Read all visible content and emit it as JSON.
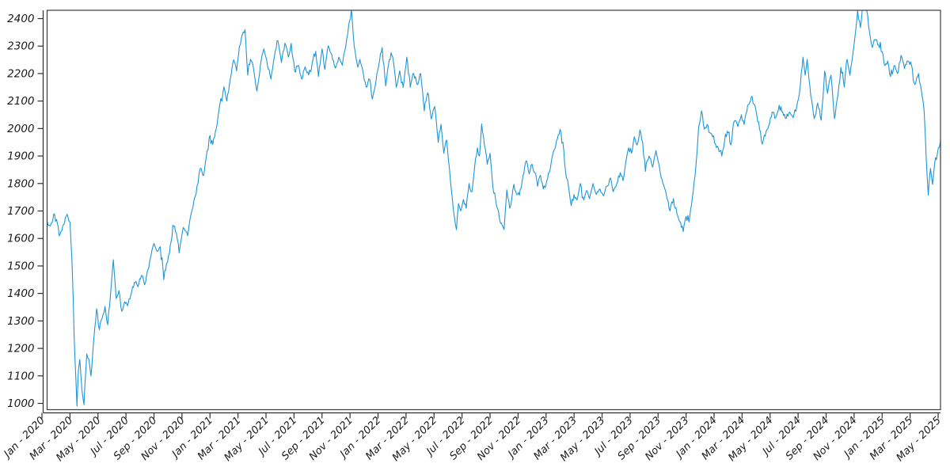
{
  "figure": {
    "background": "#ffffff",
    "frame_color": "#3b3b3b",
    "spine_color": "#2f2f2f",
    "tick_color": "#2f2f2f",
    "label_color": "#1a1a1a",
    "line_color": "#1e96d7"
  },
  "chart_data": {
    "type": "line",
    "title": "",
    "xlabel": "",
    "ylabel": "",
    "grid": false,
    "legend": null,
    "x_unit": "months since Jan 2020 (x ticks every 2 months)",
    "x_tick_labels": [
      "Jan - 2020",
      "Mar - 2020",
      "May - 2020",
      "Jul - 2020",
      "Sep - 2020",
      "Nov - 2020",
      "Jan - 2021",
      "Mar - 2021",
      "May - 2021",
      "Jul - 2021",
      "Sep - 2021",
      "Nov - 2021",
      "Jan - 2022",
      "Mar - 2022",
      "May - 2022",
      "Jul - 2022",
      "Sep - 2022",
      "Nov - 2022",
      "Jan - 2023",
      "Mar - 2023",
      "May - 2023",
      "Jul - 2023",
      "Sep - 2023",
      "Nov - 2023",
      "Jan - 2024",
      "Mar - 2024",
      "May - 2024",
      "Jul - 2024",
      "Sep - 2024",
      "Nov - 2024",
      "Jan - 2025",
      "Mar - 2025",
      "May - 2025"
    ],
    "y_ticks": [
      1000,
      1100,
      1200,
      1300,
      1400,
      1500,
      1600,
      1700,
      1800,
      1900,
      2000,
      2100,
      2200,
      2300,
      2400
    ],
    "ylim": [
      976,
      2433
    ],
    "xlim_months": [
      0.34,
      64.16
    ],
    "series": [
      {
        "name": "value",
        "color": "#1e96d7",
        "points_format": "[month_index_from_2020_01, value]",
        "points": [
          [
            0.0,
            1652
          ],
          [
            0.3,
            1658
          ],
          [
            0.6,
            1645
          ],
          [
            0.85,
            1690
          ],
          [
            1.1,
            1655
          ],
          [
            1.3,
            1615
          ],
          [
            1.55,
            1650
          ],
          [
            1.8,
            1688
          ],
          [
            2.0,
            1660
          ],
          [
            2.15,
            1512
          ],
          [
            2.3,
            1240
          ],
          [
            2.5,
            990
          ],
          [
            2.6,
            1120
          ],
          [
            2.7,
            1160
          ],
          [
            2.85,
            1050
          ],
          [
            3.0,
            995
          ],
          [
            3.2,
            1180
          ],
          [
            3.35,
            1160
          ],
          [
            3.5,
            1100
          ],
          [
            3.7,
            1230
          ],
          [
            3.9,
            1344
          ],
          [
            4.1,
            1268
          ],
          [
            4.3,
            1310
          ],
          [
            4.5,
            1353
          ],
          [
            4.7,
            1286
          ],
          [
            4.9,
            1400
          ],
          [
            5.1,
            1523
          ],
          [
            5.3,
            1382
          ],
          [
            5.5,
            1410
          ],
          [
            5.7,
            1335
          ],
          [
            5.9,
            1370
          ],
          [
            6.1,
            1355
          ],
          [
            6.35,
            1395
          ],
          [
            6.6,
            1440
          ],
          [
            6.85,
            1425
          ],
          [
            7.1,
            1465
          ],
          [
            7.4,
            1440
          ],
          [
            7.7,
            1520
          ],
          [
            8.0,
            1582
          ],
          [
            8.2,
            1555
          ],
          [
            8.45,
            1570
          ],
          [
            8.7,
            1450
          ],
          [
            8.9,
            1510
          ],
          [
            9.1,
            1545
          ],
          [
            9.35,
            1648
          ],
          [
            9.6,
            1620
          ],
          [
            9.8,
            1548
          ],
          [
            10.1,
            1640
          ],
          [
            10.4,
            1610
          ],
          [
            10.7,
            1700
          ],
          [
            11.0,
            1760
          ],
          [
            11.3,
            1855
          ],
          [
            11.55,
            1830
          ],
          [
            11.8,
            1920
          ],
          [
            12.0,
            1975
          ],
          [
            12.2,
            1942
          ],
          [
            12.45,
            2000
          ],
          [
            12.7,
            2086
          ],
          [
            13.0,
            2152
          ],
          [
            13.2,
            2100
          ],
          [
            13.45,
            2180
          ],
          [
            13.7,
            2250
          ],
          [
            13.9,
            2210
          ],
          [
            14.1,
            2300
          ],
          [
            14.3,
            2340
          ],
          [
            14.5,
            2360
          ],
          [
            14.7,
            2194
          ],
          [
            14.9,
            2252
          ],
          [
            15.1,
            2220
          ],
          [
            15.35,
            2136
          ],
          [
            15.6,
            2230
          ],
          [
            15.85,
            2290
          ],
          [
            16.1,
            2230
          ],
          [
            16.35,
            2180
          ],
          [
            16.6,
            2260
          ],
          [
            16.85,
            2320
          ],
          [
            17.1,
            2240
          ],
          [
            17.35,
            2310
          ],
          [
            17.6,
            2260
          ],
          [
            17.8,
            2310
          ],
          [
            18.05,
            2208
          ],
          [
            18.3,
            2230
          ],
          [
            18.55,
            2180
          ],
          [
            18.8,
            2225
          ],
          [
            19.05,
            2195
          ],
          [
            19.3,
            2240
          ],
          [
            19.55,
            2281
          ],
          [
            19.75,
            2190
          ],
          [
            20.0,
            2290
          ],
          [
            20.2,
            2215
          ],
          [
            20.45,
            2301
          ],
          [
            20.7,
            2270
          ],
          [
            20.95,
            2220
          ],
          [
            21.2,
            2260
          ],
          [
            21.45,
            2230
          ],
          [
            21.7,
            2300
          ],
          [
            21.9,
            2375
          ],
          [
            22.1,
            2435
          ],
          [
            22.3,
            2300
          ],
          [
            22.55,
            2223
          ],
          [
            22.7,
            2252
          ],
          [
            22.95,
            2200
          ],
          [
            23.15,
            2151
          ],
          [
            23.4,
            2180
          ],
          [
            23.6,
            2107
          ],
          [
            23.8,
            2156
          ],
          [
            24.05,
            2230
          ],
          [
            24.3,
            2295
          ],
          [
            24.55,
            2155
          ],
          [
            24.8,
            2250
          ],
          [
            25.05,
            2260
          ],
          [
            25.3,
            2150
          ],
          [
            25.55,
            2210
          ],
          [
            25.8,
            2150
          ],
          [
            26.05,
            2260
          ],
          [
            26.3,
            2150
          ],
          [
            26.55,
            2200
          ],
          [
            26.8,
            2160
          ],
          [
            27.05,
            2200
          ],
          [
            27.3,
            2064
          ],
          [
            27.55,
            2130
          ],
          [
            27.8,
            2035
          ],
          [
            28.05,
            2080
          ],
          [
            28.3,
            1950
          ],
          [
            28.5,
            2015
          ],
          [
            28.7,
            1910
          ],
          [
            28.9,
            1958
          ],
          [
            29.1,
            1855
          ],
          [
            29.3,
            1750
          ],
          [
            29.45,
            1680
          ],
          [
            29.6,
            1632
          ],
          [
            29.75,
            1727
          ],
          [
            29.9,
            1700
          ],
          [
            30.1,
            1742
          ],
          [
            30.3,
            1710
          ],
          [
            30.5,
            1800
          ],
          [
            30.7,
            1770
          ],
          [
            30.9,
            1860
          ],
          [
            31.1,
            1930
          ],
          [
            31.25,
            1900
          ],
          [
            31.4,
            2017
          ],
          [
            31.6,
            1940
          ],
          [
            31.8,
            1870
          ],
          [
            32.0,
            1910
          ],
          [
            32.2,
            1790
          ],
          [
            32.4,
            1740
          ],
          [
            32.6,
            1700
          ],
          [
            32.75,
            1655
          ],
          [
            33.0,
            1632
          ],
          [
            33.2,
            1777
          ],
          [
            33.4,
            1710
          ],
          [
            33.55,
            1743
          ],
          [
            33.7,
            1797
          ],
          [
            33.9,
            1760
          ],
          [
            34.1,
            1757
          ],
          [
            34.35,
            1830
          ],
          [
            34.6,
            1883
          ],
          [
            34.8,
            1835
          ],
          [
            35.0,
            1870
          ],
          [
            35.2,
            1840
          ],
          [
            35.4,
            1790
          ],
          [
            35.6,
            1830
          ],
          [
            35.8,
            1780
          ],
          [
            36.05,
            1810
          ],
          [
            36.3,
            1855
          ],
          [
            36.55,
            1920
          ],
          [
            36.8,
            1960
          ],
          [
            37.0,
            1997
          ],
          [
            37.2,
            1950
          ],
          [
            37.4,
            1840
          ],
          [
            37.6,
            1790
          ],
          [
            37.8,
            1720
          ],
          [
            38.0,
            1760
          ],
          [
            38.2,
            1740
          ],
          [
            38.45,
            1800
          ],
          [
            38.7,
            1740
          ],
          [
            38.9,
            1775
          ],
          [
            39.1,
            1745
          ],
          [
            39.35,
            1800
          ],
          [
            39.6,
            1760
          ],
          [
            39.85,
            1780
          ],
          [
            40.1,
            1755
          ],
          [
            40.35,
            1790
          ],
          [
            40.6,
            1820
          ],
          [
            40.8,
            1770
          ],
          [
            41.05,
            1800
          ],
          [
            41.3,
            1840
          ],
          [
            41.5,
            1810
          ],
          [
            41.7,
            1880
          ],
          [
            41.9,
            1930
          ],
          [
            42.1,
            1910
          ],
          [
            42.3,
            1970
          ],
          [
            42.5,
            1940
          ],
          [
            42.7,
            1995
          ],
          [
            42.9,
            1950
          ],
          [
            43.1,
            1844
          ],
          [
            43.35,
            1900
          ],
          [
            43.6,
            1860
          ],
          [
            43.85,
            1920
          ],
          [
            44.1,
            1860
          ],
          [
            44.35,
            1800
          ],
          [
            44.6,
            1755
          ],
          [
            44.85,
            1700
          ],
          [
            45.1,
            1745
          ],
          [
            45.35,
            1690
          ],
          [
            45.6,
            1660
          ],
          [
            45.8,
            1625
          ],
          [
            46.0,
            1680
          ],
          [
            46.2,
            1660
          ],
          [
            46.45,
            1750
          ],
          [
            46.7,
            1863
          ],
          [
            46.9,
            2007
          ],
          [
            47.1,
            2064
          ],
          [
            47.3,
            1998
          ],
          [
            47.5,
            2015
          ],
          [
            47.7,
            1984
          ],
          [
            47.9,
            1969
          ],
          [
            48.1,
            1943
          ],
          [
            48.3,
            1929
          ],
          [
            48.55,
            1900
          ],
          [
            48.75,
            1955
          ],
          [
            49.0,
            1984
          ],
          [
            49.2,
            1940
          ],
          [
            49.45,
            2027
          ],
          [
            49.7,
            2007
          ],
          [
            49.95,
            2050
          ],
          [
            50.15,
            2015
          ],
          [
            50.4,
            2085
          ],
          [
            50.65,
            2114
          ],
          [
            50.85,
            2088
          ],
          [
            51.05,
            2050
          ],
          [
            51.25,
            1998
          ],
          [
            51.45,
            1943
          ],
          [
            51.65,
            1972
          ],
          [
            51.9,
            2010
          ],
          [
            52.15,
            2060
          ],
          [
            52.4,
            2040
          ],
          [
            52.65,
            2085
          ],
          [
            52.9,
            2060
          ],
          [
            53.15,
            2037
          ],
          [
            53.4,
            2060
          ],
          [
            53.65,
            2040
          ],
          [
            53.9,
            2080
          ],
          [
            54.1,
            2130
          ],
          [
            54.35,
            2260
          ],
          [
            54.5,
            2194
          ],
          [
            54.65,
            2252
          ],
          [
            54.9,
            2122
          ],
          [
            55.15,
            2036
          ],
          [
            55.4,
            2093
          ],
          [
            55.65,
            2030
          ],
          [
            55.9,
            2209
          ],
          [
            56.1,
            2128
          ],
          [
            56.35,
            2194
          ],
          [
            56.6,
            2036
          ],
          [
            56.85,
            2122
          ],
          [
            57.05,
            2223
          ],
          [
            57.3,
            2151
          ],
          [
            57.5,
            2252
          ],
          [
            57.7,
            2194
          ],
          [
            57.9,
            2266
          ],
          [
            58.05,
            2330
          ],
          [
            58.25,
            2430
          ],
          [
            58.45,
            2367
          ],
          [
            58.65,
            2445
          ],
          [
            58.9,
            2430
          ],
          [
            59.1,
            2352
          ],
          [
            59.3,
            2295
          ],
          [
            59.5,
            2324
          ],
          [
            59.75,
            2304
          ],
          [
            60.0,
            2280
          ],
          [
            60.2,
            2229
          ],
          [
            60.4,
            2246
          ],
          [
            60.6,
            2189
          ],
          [
            60.85,
            2229
          ],
          [
            61.1,
            2200
          ],
          [
            61.35,
            2266
          ],
          [
            61.6,
            2218
          ],
          [
            61.85,
            2246
          ],
          [
            62.1,
            2230
          ],
          [
            62.35,
            2160
          ],
          [
            62.6,
            2200
          ],
          [
            62.8,
            2140
          ],
          [
            63.0,
            2064
          ],
          [
            63.15,
            1892
          ],
          [
            63.3,
            1757
          ],
          [
            63.45,
            1855
          ],
          [
            63.6,
            1797
          ],
          [
            63.75,
            1873
          ],
          [
            63.95,
            1910
          ],
          [
            64.15,
            1949
          ],
          [
            64.35,
            2006
          ]
        ]
      }
    ],
    "render": {
      "seed": 42,
      "noise_amplitude": 11,
      "points_per_month": 14
    }
  }
}
